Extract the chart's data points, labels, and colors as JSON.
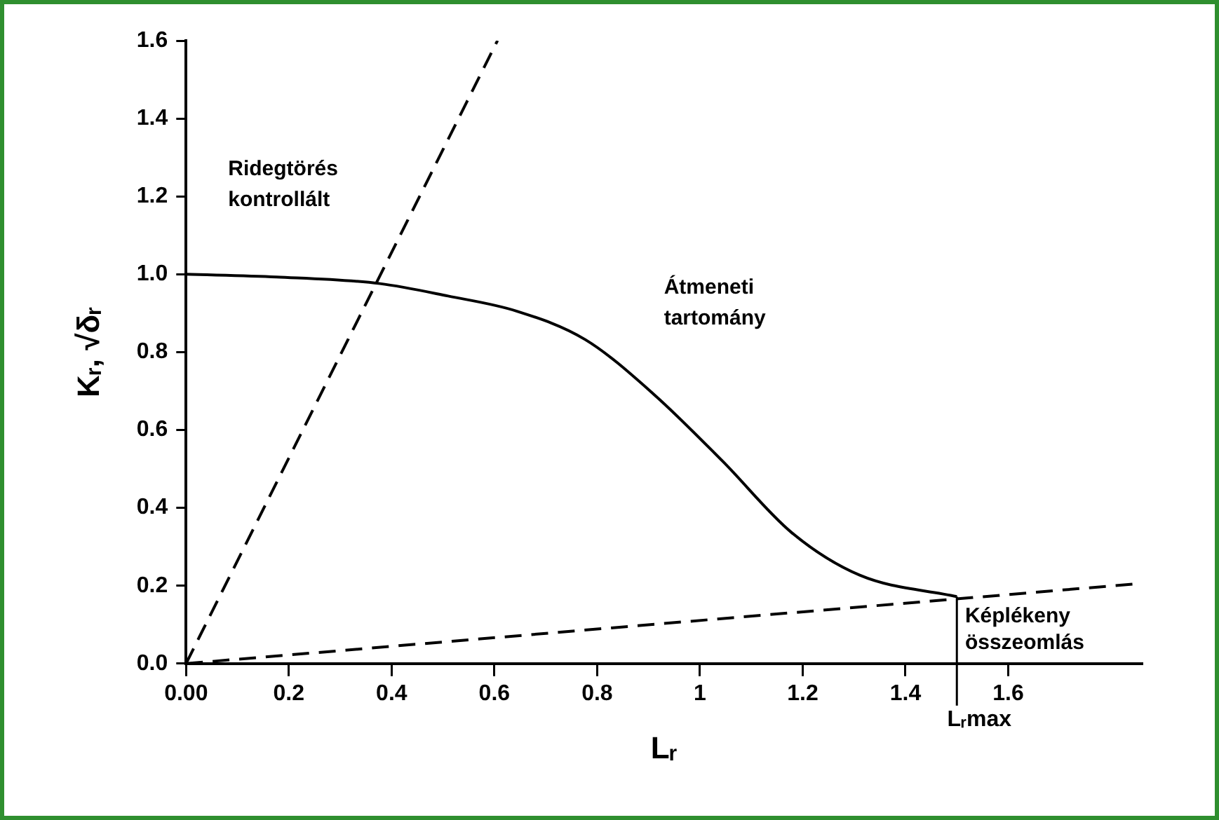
{
  "chart_data": {
    "type": "line",
    "xlabel": "Lᵣ",
    "ylabel": "Kᵣ, √δᵣ",
    "xlim": [
      0,
      1.86
    ],
    "ylim": [
      0,
      1.6
    ],
    "xticks": [
      {
        "value": 0,
        "label": "0.00"
      },
      0.2,
      0.4,
      0.6,
      0.8,
      1,
      1.2,
      1.4,
      1.6
    ],
    "yticks": [
      {
        "value": 0,
        "label": "0.0"
      },
      0.2,
      0.4,
      0.6,
      0.8,
      {
        "value": 1,
        "label": "1.0"
      },
      1.2,
      1.4,
      1.6
    ],
    "grid": false,
    "legend": false,
    "marker": "none",
    "series": [
      {
        "type": "line",
        "line_style": "solid",
        "color": "#000000",
        "x": [
          0,
          0.176,
          0.377,
          0.51,
          0.644,
          0.777,
          0.91,
          1.044,
          1.178,
          1.311,
          1.5
        ],
        "values": [
          1.0,
          0.993,
          0.976,
          0.944,
          0.905,
          0.832,
          0.692,
          0.52,
          0.337,
          0.227,
          0.172
        ]
      },
      {
        "type": "line",
        "line_style": "dashed",
        "color": "#000000",
        "x": [
          0,
          0.606
        ],
        "values": [
          0,
          1.6
        ]
      },
      {
        "type": "line",
        "line_style": "dashed",
        "color": "#000000",
        "x": [
          0,
          1.86
        ],
        "values": [
          0,
          0.206
        ]
      }
    ],
    "ref_lines": [
      {
        "axis": "x",
        "value": 1.5,
        "label": "Lᵣmax"
      }
    ],
    "annotations": [
      "Ridegtörés\nkontrollált",
      "Átmeneti\ntartomány",
      "Képlékeny\nösszeomlás"
    ]
  }
}
